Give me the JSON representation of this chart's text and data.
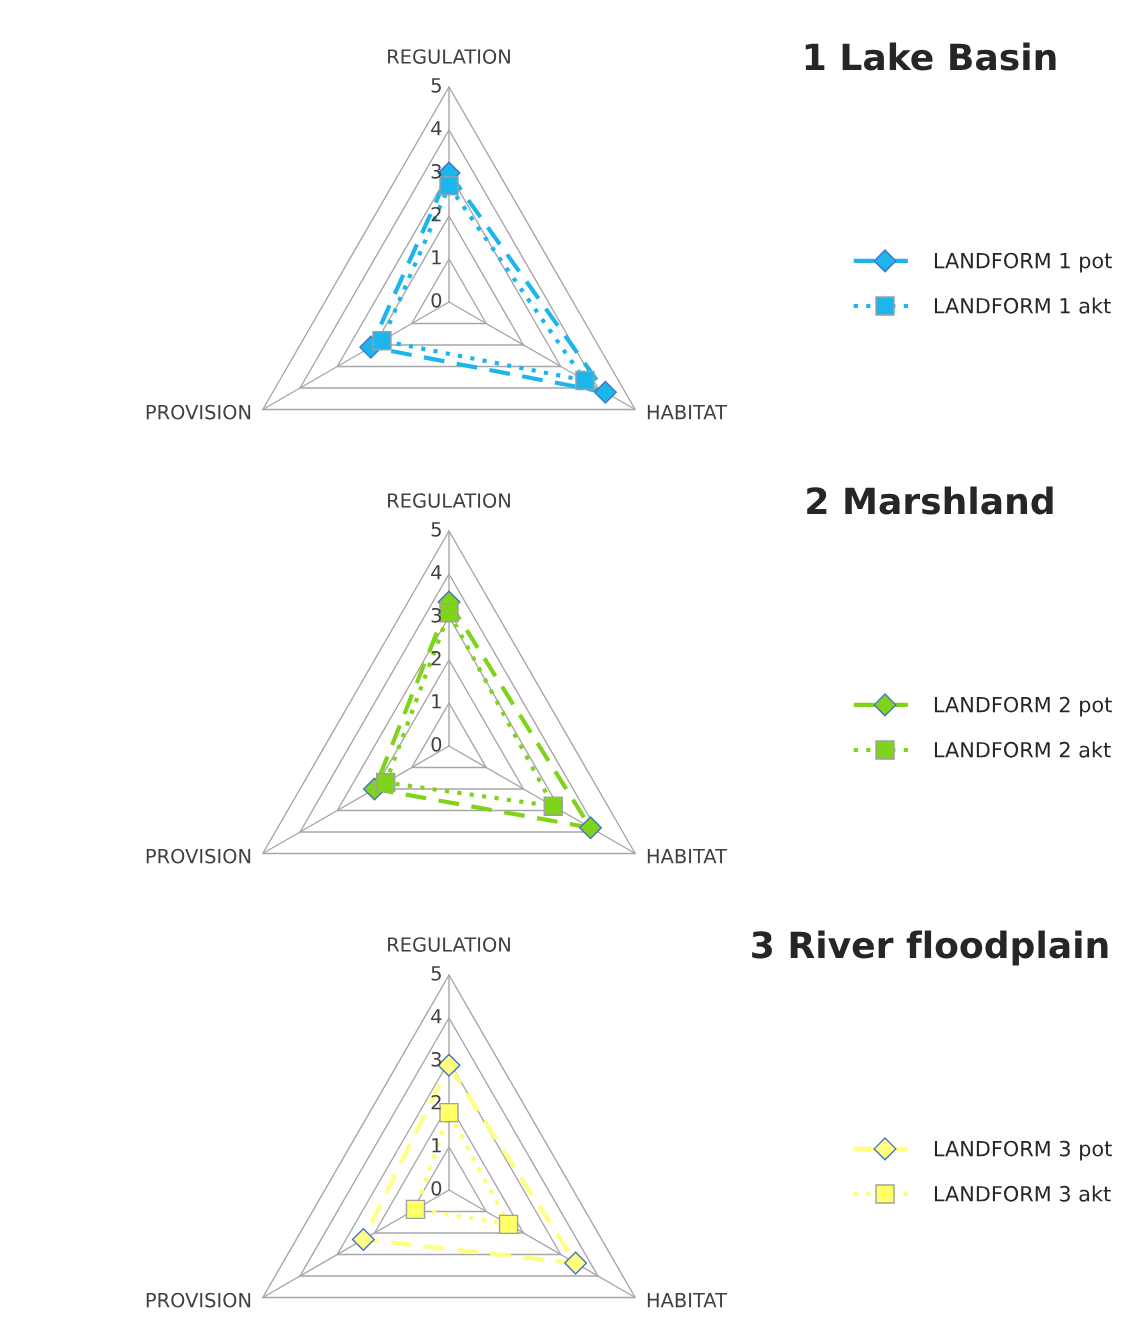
{
  "chart_data": [
    {
      "type": "radar",
      "title": "1 Lake Basin",
      "categories": [
        "REGULATION",
        "HABITAT",
        "PROVISION"
      ],
      "ylim": [
        0,
        5
      ],
      "yticks": [
        0,
        1,
        2,
        3,
        4,
        5
      ],
      "legend": "right",
      "series": [
        {
          "name": "LANDFORM 1 pot",
          "color": "#1cb5ec",
          "marker": "diamond",
          "line_style": "dashed",
          "values": [
            3.0,
            4.2,
            2.1
          ]
        },
        {
          "name": "LANDFORM 1 akt",
          "color": "#1cb5ec",
          "marker": "square",
          "line_style": "dotted",
          "values": [
            2.7,
            3.65,
            1.8
          ]
        }
      ]
    },
    {
      "type": "radar",
      "title": "2 Marshland",
      "categories": [
        "REGULATION",
        "HABITAT",
        "PROVISION"
      ],
      "ylim": [
        0,
        5
      ],
      "yticks": [
        0,
        1,
        2,
        3,
        4,
        5
      ],
      "legend": "right",
      "series": [
        {
          "name": "LANDFORM 2 pot",
          "color": "#7fd31b",
          "marker": "diamond",
          "line_style": "dashed",
          "values": [
            3.35,
            3.8,
            2.0
          ]
        },
        {
          "name": "LANDFORM 2 akt",
          "color": "#7fd31b",
          "marker": "square",
          "line_style": "dotted",
          "values": [
            3.1,
            2.8,
            1.7
          ]
        }
      ]
    },
    {
      "type": "radar",
      "title": "3 River floodplain",
      "categories": [
        "REGULATION",
        "HABITAT",
        "PROVISION"
      ],
      "ylim": [
        0,
        5
      ],
      "yticks": [
        0,
        1,
        2,
        3,
        4,
        5
      ],
      "legend": "right",
      "series": [
        {
          "name": "LANDFORM 3 pot",
          "color": "#ffff80",
          "marker": "diamond",
          "line_style": "dashed",
          "values": [
            2.9,
            3.4,
            2.3
          ]
        },
        {
          "name": "LANDFORM 3 akt",
          "color": "#ffff66",
          "marker": "square",
          "line_style": "dotted",
          "values": [
            1.8,
            1.6,
            0.9
          ]
        }
      ]
    }
  ]
}
